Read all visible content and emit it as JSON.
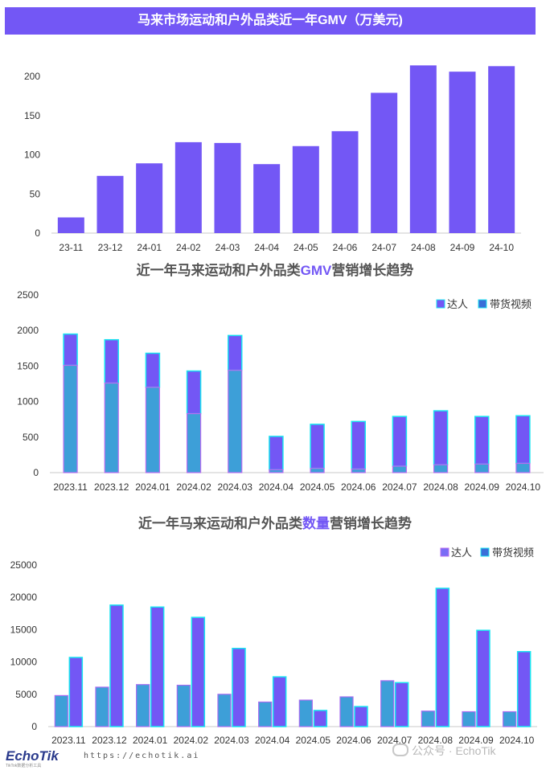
{
  "header": {
    "title": "马来市场运动和户外品类近一年GMV（万美元)"
  },
  "chart_data": [
    {
      "type": "bar",
      "title": "",
      "categories": [
        "23-11",
        "23-12",
        "24-01",
        "24-02",
        "24-03",
        "24-04",
        "24-05",
        "24-06",
        "24-07",
        "24-08",
        "24-09",
        "24-10"
      ],
      "values": [
        20,
        73,
        89,
        116,
        115,
        88,
        111,
        130,
        179,
        214,
        206,
        213
      ],
      "ylim": [
        0,
        200
      ],
      "yticks": [
        0,
        50,
        100,
        150,
        200
      ],
      "grid": false,
      "colors": {
        "bar": "#7357f5"
      }
    },
    {
      "type": "bar",
      "stacked": true,
      "title_parts": [
        "近一年马来运动和户外品类",
        "GMV",
        "营销增长趋势"
      ],
      "categories": [
        "2023.11",
        "2023.12",
        "2024.01",
        "2024.02",
        "2024.03",
        "2024.04",
        "2024.05",
        "2024.06",
        "2024.07",
        "2024.08",
        "2024.09",
        "2024.10"
      ],
      "series": [
        {
          "name": "带货视频",
          "values": [
            1510,
            1260,
            1200,
            830,
            1440,
            40,
            60,
            50,
            90,
            110,
            120,
            130
          ]
        },
        {
          "name": "达人",
          "values": [
            440,
            610,
            480,
            600,
            490,
            470,
            620,
            670,
            700,
            760,
            670,
            670
          ]
        }
      ],
      "ylim": [
        0,
        2500
      ],
      "yticks": [
        0,
        500,
        1000,
        1500,
        2000,
        2500
      ],
      "legend": "top-right",
      "legend_order": [
        "达人",
        "带货视频"
      ],
      "colors": {
        "达人": "#7357f5",
        "带货视频": "#3d9fd8",
        "带货视频_border": "#18e4f0"
      }
    },
    {
      "type": "bar",
      "grouped": true,
      "title_parts": [
        "近一年马来运动和户外品类",
        "数量",
        "营销增长趋势"
      ],
      "categories": [
        "2023.11",
        "2023.12",
        "2024.01",
        "2024.02",
        "2024.03",
        "2024.04",
        "2024.05",
        "2024.06",
        "2024.07",
        "2024.08",
        "2024.09",
        "2024.10"
      ],
      "series": [
        {
          "name": "达人",
          "values": [
            4800,
            6100,
            6500,
            6400,
            5000,
            3800,
            4100,
            4600,
            7100,
            2400,
            2300,
            2300
          ]
        },
        {
          "name": "带货视频",
          "values": [
            10700,
            18800,
            18500,
            16900,
            12100,
            7700,
            2500,
            3100,
            6800,
            21400,
            14900,
            11600
          ]
        }
      ],
      "ylim": [
        0,
        25000
      ],
      "yticks": [
        0,
        5000,
        10000,
        15000,
        20000,
        25000
      ],
      "legend": "top-right",
      "legend_order": [
        "达人",
        "带货视频"
      ],
      "colors": {
        "达人": "#3d9fd8",
        "带货视频": "#7357f5",
        "border": "#18e4f0"
      }
    }
  ],
  "footer": {
    "logo": "EchoTik",
    "logo_sub": "TikTok数据分析工具",
    "url": "https://echotik.ai",
    "watermark": "公众号 · EchoTik"
  }
}
